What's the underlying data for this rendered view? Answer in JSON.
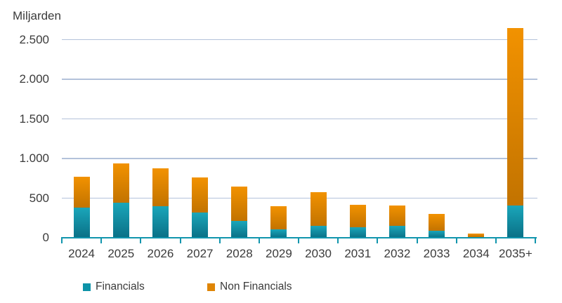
{
  "chart_data": {
    "type": "bar",
    "stacked": true,
    "title": "Miljarden",
    "xlabel": "",
    "ylabel": "Miljarden",
    "categories": [
      "2024",
      "2025",
      "2026",
      "2027",
      "2028",
      "2029",
      "2030",
      "2031",
      "2032",
      "2033",
      "2034",
      "2035+"
    ],
    "series": [
      {
        "name": "Financials",
        "color": "#0d93a8",
        "gradient_top": "#1aa6ba",
        "gradient_bottom": "#0a7086",
        "values": [
          380,
          445,
          400,
          315,
          210,
          105,
          155,
          130,
          150,
          85,
          10,
          410
        ]
      },
      {
        "name": "Non Financials",
        "color": "#df8505",
        "gradient_top": "#f29200",
        "gradient_bottom": "#c27300",
        "values": [
          390,
          495,
          475,
          450,
          440,
          295,
          420,
          290,
          260,
          215,
          40,
          2240
        ]
      }
    ],
    "totals": [
      770,
      940,
      875,
      765,
      650,
      400,
      575,
      420,
      410,
      300,
      50,
      2650
    ],
    "y_ticks": [
      {
        "value": 0,
        "label": "0"
      },
      {
        "value": 500,
        "label": "500"
      },
      {
        "value": 1000,
        "label": "1.000"
      },
      {
        "value": 1500,
        "label": "1.500"
      },
      {
        "value": 2000,
        "label": "2.000"
      },
      {
        "value": 2500,
        "label": "2.500"
      }
    ],
    "ylim": [
      0,
      2700
    ],
    "grid": true,
    "legend_position": "bottom"
  },
  "colors": {
    "axis": "#1195ad",
    "gridline": "#b3c2da",
    "text": "#3b3b3b",
    "background": "#ffffff"
  }
}
